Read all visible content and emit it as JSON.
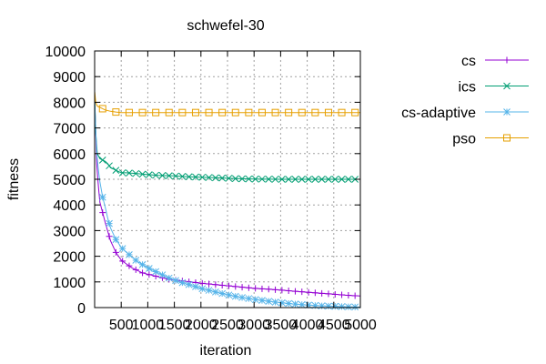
{
  "chart_data": {
    "type": "line",
    "title": "schwefel-30",
    "xlabel": "iteration",
    "ylabel": "fitness",
    "xlim": [
      0,
      5000
    ],
    "ylim": [
      0,
      10000
    ],
    "xticks": [
      500,
      1000,
      1500,
      2000,
      2500,
      3000,
      3500,
      4000,
      4500,
      5000
    ],
    "yticks": [
      0,
      1000,
      2000,
      3000,
      4000,
      5000,
      6000,
      7000,
      8000,
      9000,
      10000
    ],
    "grid": true,
    "legend_position": "top-right, outside plot",
    "series": [
      {
        "name": "cs",
        "color": "#9400d3",
        "marker": "plus",
        "x": [
          1,
          20,
          40,
          60,
          80,
          100,
          150,
          200,
          250,
          300,
          400,
          500,
          600,
          700,
          800,
          900,
          1000,
          1200,
          1400,
          1600,
          1800,
          2000,
          2250,
          2500,
          2750,
          3000,
          3250,
          3500,
          3750,
          4000,
          4250,
          4500,
          4750,
          5000
        ],
        "y": [
          8000,
          6800,
          5600,
          5000,
          4500,
          4100,
          3700,
          3300,
          2950,
          2600,
          2150,
          1850,
          1700,
          1550,
          1450,
          1350,
          1300,
          1200,
          1100,
          1050,
          1000,
          950,
          900,
          850,
          800,
          750,
          720,
          680,
          640,
          600,
          560,
          520,
          480,
          450
        ]
      },
      {
        "name": "ics",
        "color": "#009e73",
        "marker": "x",
        "x": [
          1,
          20,
          50,
          100,
          150,
          200,
          250,
          300,
          400,
          500,
          600,
          800,
          1000,
          1200,
          1500,
          1750,
          2000,
          2250,
          2500,
          2750,
          3000,
          3500,
          4000,
          4500,
          5000
        ],
        "y": [
          8200,
          6800,
          6000,
          5800,
          5750,
          5700,
          5600,
          5450,
          5350,
          5250,
          5250,
          5220,
          5180,
          5150,
          5130,
          5100,
          5080,
          5060,
          5040,
          5020,
          5010,
          5000,
          5000,
          5000,
          5000
        ]
      },
      {
        "name": "cs-adaptive",
        "color": "#56b4e9",
        "marker": "star",
        "x": [
          1,
          20,
          40,
          60,
          80,
          100,
          150,
          200,
          250,
          300,
          400,
          500,
          600,
          800,
          1000,
          1200,
          1400,
          1600,
          1800,
          2000,
          2250,
          2500,
          2750,
          3000,
          3250,
          3500,
          3750,
          4000,
          4250,
          4500,
          4750,
          5000
        ],
        "y": [
          8000,
          7000,
          6000,
          5600,
          5200,
          4900,
          4300,
          3900,
          3450,
          3100,
          2650,
          2350,
          2150,
          1800,
          1550,
          1350,
          1150,
          1000,
          880,
          750,
          620,
          500,
          400,
          320,
          250,
          190,
          140,
          100,
          70,
          50,
          30,
          20
        ]
      },
      {
        "name": "pso",
        "color": "#e69f00",
        "marker": "square",
        "x": [
          1,
          20,
          50,
          100,
          150,
          200,
          300,
          400,
          500,
          1000,
          1500,
          2000,
          2500,
          3000,
          3500,
          4000,
          4500,
          5000
        ],
        "y": [
          8400,
          8000,
          7850,
          7800,
          7750,
          7700,
          7650,
          7620,
          7600,
          7600,
          7600,
          7600,
          7600,
          7600,
          7600,
          7600,
          7600,
          7600
        ]
      }
    ]
  }
}
